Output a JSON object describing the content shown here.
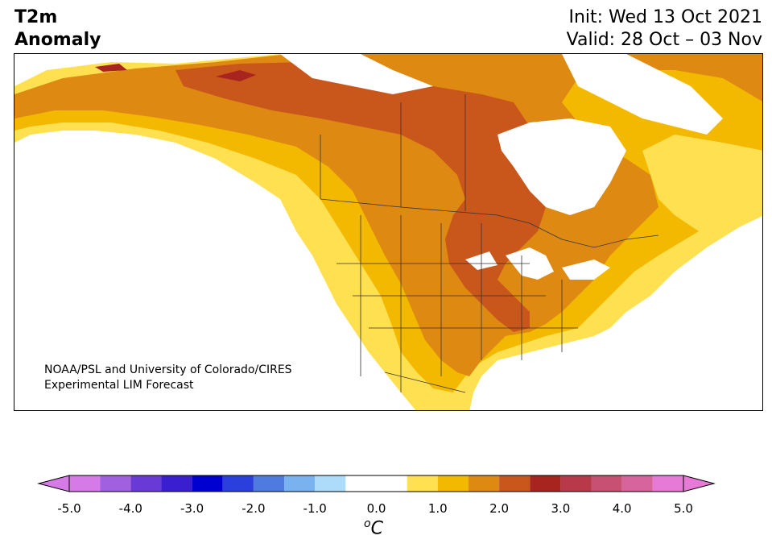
{
  "title": {
    "left_line1": "T2m",
    "left_line2": "Anomaly",
    "init": "Init: Wed 13 Oct 2021",
    "valid": "Valid: 28 Oct – 03 Nov"
  },
  "credit": {
    "line1": "NOAA/PSL and University of Colorado/CIRES",
    "line2": "Experimental LIM Forecast"
  },
  "colorbar": {
    "ticks": [
      "-5.0",
      "-4.0",
      "-3.0",
      "-2.0",
      "-1.0",
      "0.0",
      "1.0",
      "2.0",
      "3.0",
      "4.0",
      "5.0"
    ],
    "unit_symbol": "o",
    "unit_letter": "C",
    "bins": [
      {
        "from": -5.0,
        "to": -4.5,
        "color": "#d57ae6"
      },
      {
        "from": -4.5,
        "to": -4.0,
        "color": "#a060e0"
      },
      {
        "from": -4.0,
        "to": -3.5,
        "color": "#6a3ad6"
      },
      {
        "from": -3.5,
        "to": -3.0,
        "color": "#3a1fd0"
      },
      {
        "from": -3.0,
        "to": -2.5,
        "color": "#0000d0"
      },
      {
        "from": -2.5,
        "to": -2.0,
        "color": "#2a3fdc"
      },
      {
        "from": -2.0,
        "to": -1.5,
        "color": "#4f7ae0"
      },
      {
        "from": -1.5,
        "to": -1.0,
        "color": "#79b2ef"
      },
      {
        "from": -1.0,
        "to": -0.5,
        "color": "#acdcfa"
      },
      {
        "from": -0.5,
        "to": 0.5,
        "color": "#ffffff"
      },
      {
        "from": 0.5,
        "to": 1.0,
        "color": "#ffe050"
      },
      {
        "from": 1.0,
        "to": 1.5,
        "color": "#f3b800"
      },
      {
        "from": 1.5,
        "to": 2.0,
        "color": "#de8a12"
      },
      {
        "from": 2.0,
        "to": 2.5,
        "color": "#c9561a"
      },
      {
        "from": 2.5,
        "to": 3.0,
        "color": "#a8241f"
      },
      {
        "from": 3.0,
        "to": 3.5,
        "color": "#b83a4a"
      },
      {
        "from": 3.5,
        "to": 4.0,
        "color": "#c85072"
      },
      {
        "from": 4.0,
        "to": 4.5,
        "color": "#d8649e"
      },
      {
        "from": 4.5,
        "to": 5.0,
        "color": "#e77ad6"
      }
    ],
    "extend_low_color": "#d57ae6",
    "extend_high_color": "#e77ad6"
  },
  "map_colors": {
    "ocean": "#ffffff",
    "a05": "#ffe050",
    "a10": "#f3b800",
    "a15": "#de8a12",
    "a20": "#c9561a",
    "a25": "#a8241f"
  }
}
